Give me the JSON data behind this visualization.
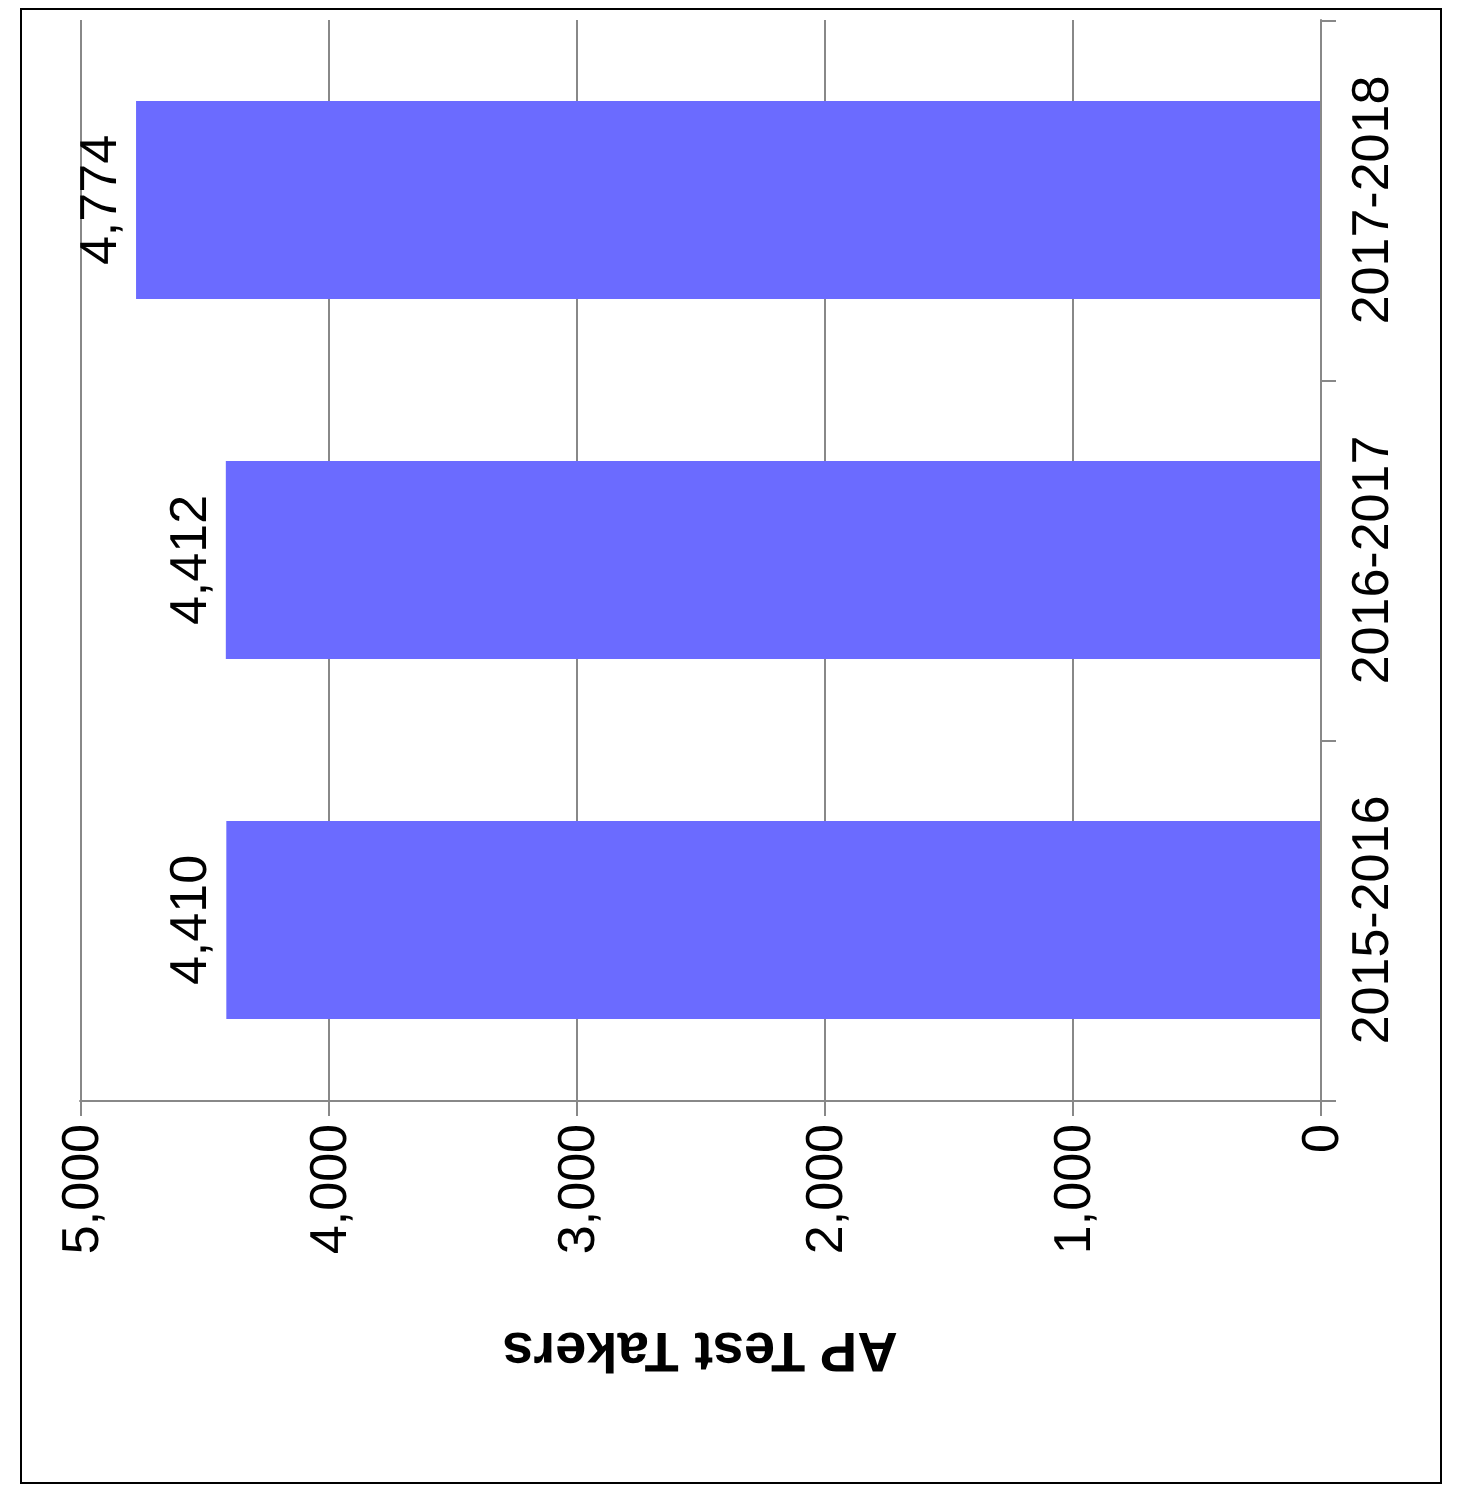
{
  "chart_data": {
    "type": "bar",
    "orientation": "horizontal",
    "xlabel": "AP Test Takers",
    "categories": [
      "2017-2018",
      "2016-2017",
      "2015-2016"
    ],
    "values": [
      4774,
      4412,
      4410
    ],
    "value_labels": [
      "4,774",
      "4,412",
      "4,410"
    ],
    "color": "#6b6bff",
    "xlim": [
      5000,
      0
    ],
    "xticks": [
      {
        "value": 5000,
        "label": "5,000"
      },
      {
        "value": 4000,
        "label": "4,000"
      },
      {
        "value": 3000,
        "label": "3,000"
      },
      {
        "value": 2000,
        "label": "2,000"
      },
      {
        "value": 1000,
        "label": "1,000"
      },
      0
    ],
    "grid": "x"
  }
}
